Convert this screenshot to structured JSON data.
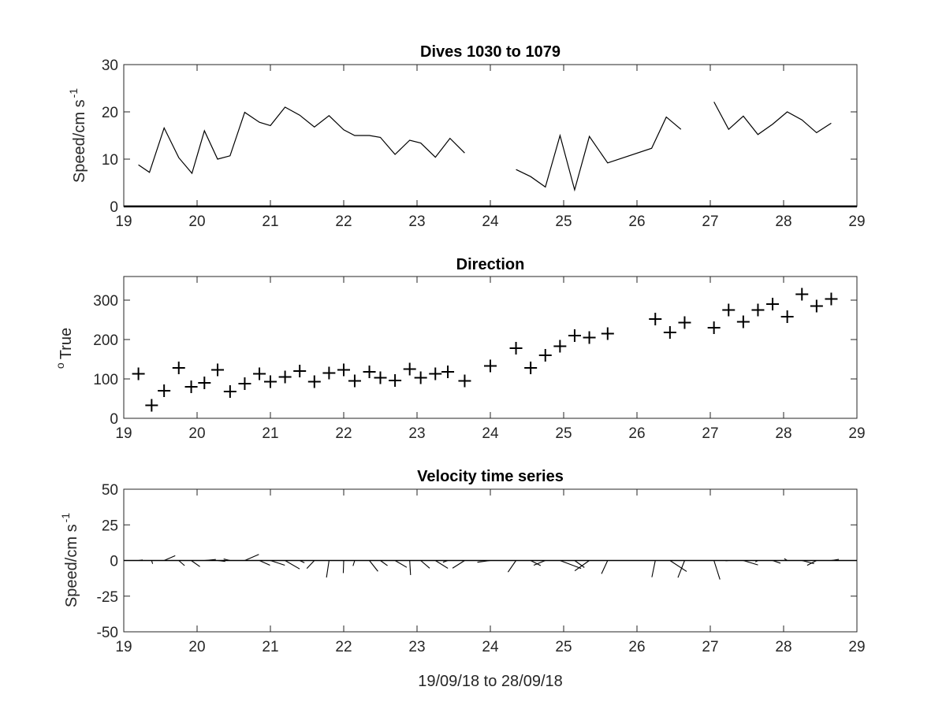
{
  "chart_data": [
    {
      "type": "line",
      "title": "Dives 1030 to 1079",
      "ylabel": "Speed/cm s",
      "ylabel_superscript": "-1",
      "xlim": [
        19,
        29
      ],
      "ylim": [
        0,
        30
      ],
      "xticks": [
        "19",
        "20",
        "21",
        "22",
        "23",
        "24",
        "25",
        "26",
        "27",
        "28",
        "29"
      ],
      "yticks": [
        "0",
        "10",
        "20",
        "30"
      ],
      "series": [
        {
          "segments": [
            [
              [
                19.2,
                8.8
              ],
              [
                19.35,
                7.2
              ],
              [
                19.55,
                16.6
              ],
              [
                19.75,
                10.3
              ],
              [
                19.93,
                7.0
              ],
              [
                20.1,
                16.0
              ],
              [
                20.28,
                10.0
              ],
              [
                20.45,
                10.7
              ],
              [
                20.65,
                19.9
              ],
              [
                20.85,
                17.8
              ],
              [
                21.0,
                17.1
              ],
              [
                21.2,
                21.0
              ],
              [
                21.4,
                19.3
              ],
              [
                21.6,
                16.8
              ],
              [
                21.8,
                19.2
              ],
              [
                22.0,
                16.2
              ],
              [
                22.15,
                15.0
              ],
              [
                22.35,
                15.0
              ],
              [
                22.5,
                14.6
              ],
              [
                22.7,
                11.0
              ],
              [
                22.9,
                14.0
              ],
              [
                23.05,
                13.4
              ],
              [
                23.25,
                10.4
              ],
              [
                23.45,
                14.4
              ],
              [
                23.65,
                11.3
              ]
            ],
            [
              [
                24.35,
                7.8
              ],
              [
                24.55,
                6.3
              ],
              [
                24.75,
                4.1
              ],
              [
                24.95,
                15.0
              ],
              [
                25.15,
                3.5
              ],
              [
                25.35,
                14.8
              ],
              [
                25.6,
                9.2
              ],
              [
                26.2,
                12.3
              ],
              [
                26.4,
                18.9
              ],
              [
                26.6,
                16.3
              ]
            ],
            [
              [
                27.05,
                22.1
              ],
              [
                27.25,
                16.3
              ],
              [
                27.45,
                19.1
              ],
              [
                27.65,
                15.2
              ],
              [
                27.85,
                17.4
              ],
              [
                28.05,
                20.0
              ],
              [
                28.25,
                18.3
              ],
              [
                28.45,
                15.6
              ],
              [
                28.65,
                17.6
              ]
            ]
          ]
        }
      ]
    },
    {
      "type": "scatter",
      "title": "Direction",
      "ylabel": "True",
      "ylabel_prefix": "o",
      "xlim": [
        19,
        29
      ],
      "ylim": [
        0,
        360
      ],
      "xticks": [
        "19",
        "20",
        "21",
        "22",
        "23",
        "24",
        "25",
        "26",
        "27",
        "28",
        "29"
      ],
      "yticks": [
        "0",
        "100",
        "200",
        "300"
      ],
      "marker": "+",
      "x": [
        19.2,
        19.38,
        19.55,
        19.75,
        19.92,
        20.1,
        20.28,
        20.45,
        20.65,
        20.85,
        21.0,
        21.2,
        21.4,
        21.6,
        21.8,
        22.0,
        22.15,
        22.35,
        22.5,
        22.7,
        22.9,
        23.05,
        23.25,
        23.42,
        23.65,
        24.0,
        24.35,
        24.55,
        24.75,
        24.95,
        25.15,
        25.35,
        25.6,
        26.25,
        26.45,
        26.65,
        27.05,
        27.25,
        27.45,
        27.65,
        27.85,
        28.05,
        28.25,
        28.45,
        28.65
      ],
      "y": [
        113,
        33,
        70,
        128,
        80,
        90,
        123,
        68,
        88,
        113,
        93,
        105,
        120,
        93,
        115,
        123,
        95,
        118,
        103,
        96,
        125,
        103,
        113,
        118,
        95,
        133,
        178,
        128,
        160,
        183,
        210,
        205,
        215,
        252,
        218,
        243,
        230,
        275,
        245,
        275,
        290,
        258,
        315,
        285,
        303
      ]
    },
    {
      "type": "quiver",
      "title": "Velocity time series",
      "ylabel": "Speed/cm s",
      "ylabel_superscript": "-1",
      "xlabel": "19/09/18 to 28/09/18",
      "xlim": [
        19,
        29
      ],
      "ylim": [
        -50,
        50
      ],
      "xticks": [
        "19",
        "20",
        "21",
        "22",
        "23",
        "24",
        "25",
        "26",
        "27",
        "28",
        "29"
      ],
      "yticks": [
        "-50",
        "-25",
        "0",
        "25",
        "50"
      ],
      "baseline": 0,
      "x": [
        19.2,
        19.38,
        19.55,
        19.75,
        19.92,
        20.1,
        20.28,
        20.45,
        20.65,
        20.85,
        21.0,
        21.2,
        21.4,
        21.6,
        21.8,
        22.0,
        22.15,
        22.35,
        22.5,
        22.7,
        22.9,
        23.05,
        23.25,
        23.42,
        23.65,
        24.0,
        24.35,
        24.55,
        24.75,
        24.95,
        25.15,
        25.35,
        25.6,
        26.25,
        26.45,
        26.65,
        27.05,
        27.25,
        27.45,
        27.65,
        27.85,
        28.05,
        28.25,
        28.45,
        28.65
      ],
      "u": [
        3,
        0.7,
        7.8,
        4.1,
        6.1,
        8,
        5.4,
        -4.5,
        9.9,
        7.4,
        10.1,
        10.2,
        3.3,
        -5.3,
        -1.8,
        -0.3,
        -1.2,
        6.0,
        5.0,
        8.2,
        0.6,
        6.3,
        8.8,
        -3.4,
        -8.5,
        -9.1,
        -5.6,
        7.0,
        -8.1,
        14.8,
        6.8,
        -10.2,
        -4.3,
        -2.4,
        11.7,
        -4.7,
        4.2,
        -2.1,
        10.3,
        -1.8,
        5.5,
        -2.1,
        8.5,
        -6.6,
        5.3
      ],
      "v": [
        0.4,
        -2.3,
        3.4,
        -3.6,
        -4.3,
        0.7,
        -0.7,
        1.1,
        4.3,
        -3.3,
        -3.3,
        -5.9,
        -1.6,
        -5.6,
        -11.9,
        -8.8,
        -3.8,
        -7.6,
        -3.6,
        -4.8,
        -10.2,
        -5.4,
        -5.5,
        -1.2,
        -5.4,
        -1.2,
        -8.1,
        -3.6,
        -3.3,
        -5.6,
        -4.9,
        -7.2,
        -9.3,
        -11.7,
        -7.7,
        -12.0,
        -13.3,
        -0.2,
        -3.1,
        -1.0,
        -1.9,
        1.3,
        -2.2,
        -3.4,
        0.8
      ]
    }
  ]
}
